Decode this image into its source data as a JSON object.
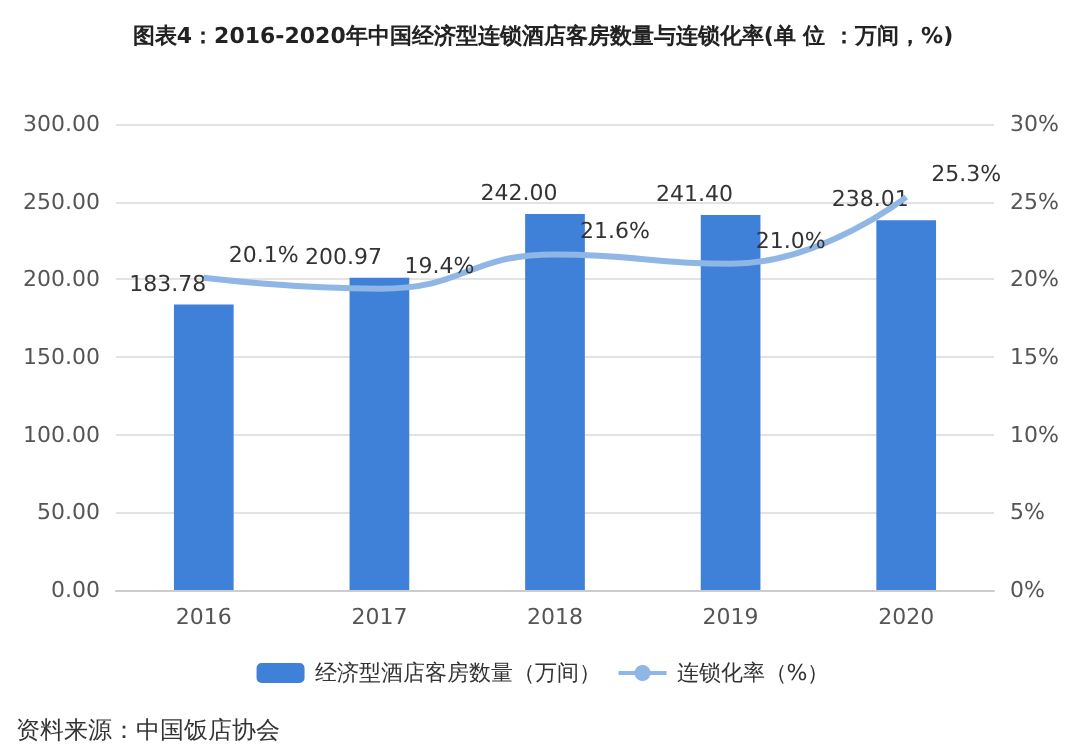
{
  "chart_data": {
    "type": "bar",
    "title": "图表4：2016-2020年中国经济型连锁酒店客房数量与连锁化率(单 位 ：万间，%)",
    "categories": [
      "2016",
      "2017",
      "2018",
      "2019",
      "2020"
    ],
    "series": [
      {
        "name": "经济型酒店客房数量（万间）",
        "color": "#3f80d8",
        "values": [
          183.78,
          200.97,
          242.0,
          241.4,
          238.01
        ],
        "value_labels": [
          "183.78",
          "200.97",
          "242.00",
          "241.40",
          "238.01"
        ]
      },
      {
        "name": "连锁化率（%）",
        "type": "line",
        "axis": "y2",
        "color": "#8fb6e4",
        "values": [
          20.1,
          19.4,
          21.6,
          21.0,
          25.3
        ],
        "value_labels": [
          "20.1%",
          "19.4%",
          "21.6%",
          "21.0%",
          "25.3%"
        ]
      }
    ],
    "ylim": [
      0,
      300
    ],
    "yticks": [
      {
        "value": 0,
        "label": "0.00"
      },
      {
        "value": 50,
        "label": "50.00"
      },
      {
        "value": 100,
        "label": "100.00"
      },
      {
        "value": 150,
        "label": "150.00"
      },
      {
        "value": 200,
        "label": "200.00"
      },
      {
        "value": 250,
        "label": "250.00"
      },
      {
        "value": 300,
        "label": "300.00"
      }
    ],
    "y2lim": [
      0,
      30
    ],
    "y2ticks": [
      {
        "value": 0,
        "label": "0%"
      },
      {
        "value": 5,
        "label": "5%"
      },
      {
        "value": 10,
        "label": "10%"
      },
      {
        "value": 15,
        "label": "15%"
      },
      {
        "value": 20,
        "label": "20%"
      },
      {
        "value": 25,
        "label": "25%"
      },
      {
        "value": 30,
        "label": "30%"
      }
    ],
    "grid": "y",
    "legend": "bottom",
    "marker": "none",
    "line_style": "solid",
    "annotations": [
      "资料来源：中国饭店协会"
    ]
  }
}
